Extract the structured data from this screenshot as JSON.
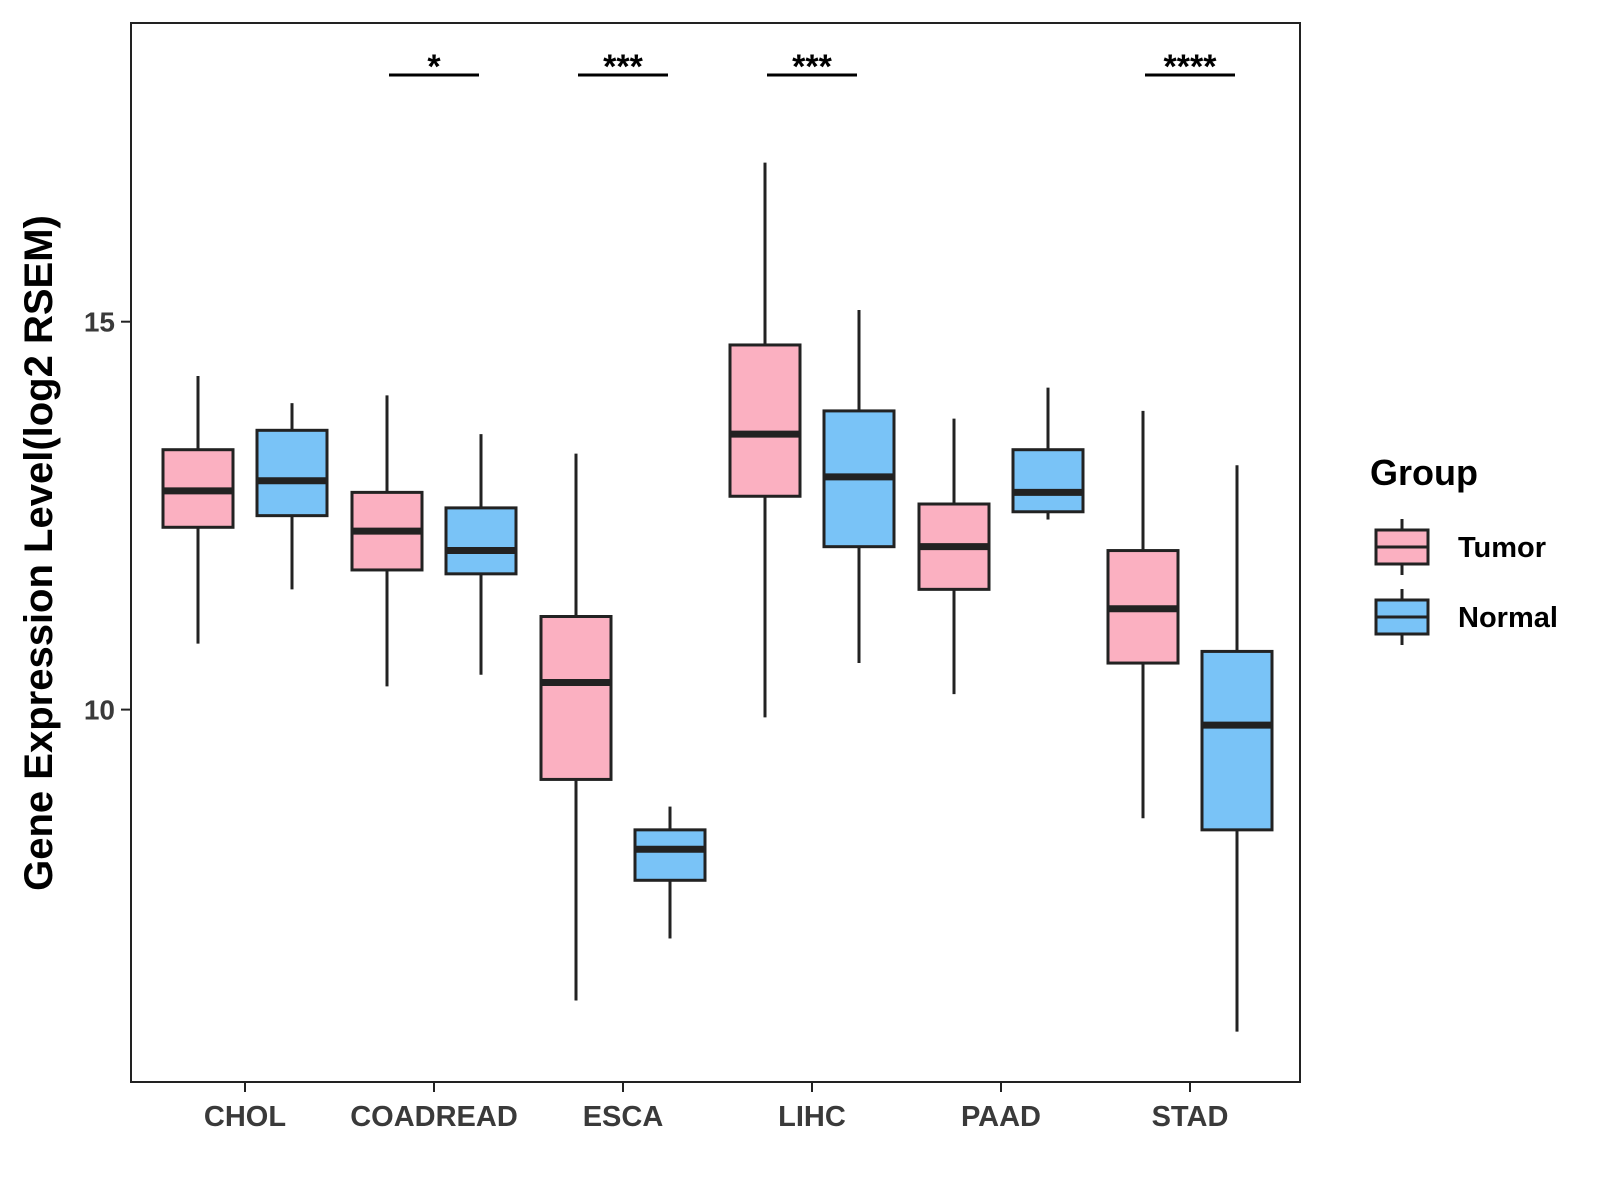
{
  "chart_data": {
    "type": "boxplot",
    "title": "",
    "xlabel": "",
    "ylabel": "Gene Expression Level(log2 RSEM)",
    "ylim": [
      5.2,
      18.85
    ],
    "yticks": [
      10,
      15
    ],
    "categories": [
      "CHOL",
      "COADREAD",
      "ESCA",
      "LIHC",
      "PAAD",
      "STAD"
    ],
    "series": [
      {
        "name": "Tumor",
        "color": "#FBB0C1",
        "stats": [
          {
            "min": 10.85,
            "q1": 12.35,
            "median": 12.82,
            "q3": 13.35,
            "max": 14.3
          },
          {
            "min": 10.3,
            "q1": 11.8,
            "median": 12.3,
            "q3": 12.8,
            "max": 14.05
          },
          {
            "min": 6.25,
            "q1": 9.1,
            "median": 10.35,
            "q3": 11.2,
            "max": 13.3
          },
          {
            "min": 9.9,
            "q1": 12.75,
            "median": 13.55,
            "q3": 14.7,
            "max": 17.05
          },
          {
            "min": 10.2,
            "q1": 11.55,
            "median": 12.1,
            "q3": 12.65,
            "max": 13.75
          },
          {
            "min": 8.6,
            "q1": 10.6,
            "median": 11.3,
            "q3": 12.05,
            "max": 13.85
          }
        ]
      },
      {
        "name": "Normal",
        "color": "#79C3F7",
        "stats": [
          {
            "min": 11.55,
            "q1": 12.5,
            "median": 12.95,
            "q3": 13.6,
            "max": 13.95
          },
          {
            "min": 10.45,
            "q1": 11.75,
            "median": 12.05,
            "q3": 12.6,
            "max": 13.55
          },
          {
            "min": 7.05,
            "q1": 7.8,
            "median": 8.2,
            "q3": 8.45,
            "max": 8.75
          },
          {
            "min": 10.6,
            "q1": 12.1,
            "median": 13.0,
            "q3": 13.85,
            "max": 15.15
          },
          {
            "min": 12.45,
            "q1": 12.55,
            "median": 12.8,
            "q3": 13.35,
            "max": 14.15
          },
          {
            "min": 5.85,
            "q1": 8.45,
            "median": 9.8,
            "q3": 10.75,
            "max": 13.15
          }
        ]
      }
    ],
    "significance": [
      "",
      "*",
      "***",
      "***",
      "",
      "****"
    ],
    "legend": {
      "title": "Group",
      "position": "right",
      "entries": [
        "Tumor",
        "Normal"
      ]
    }
  }
}
